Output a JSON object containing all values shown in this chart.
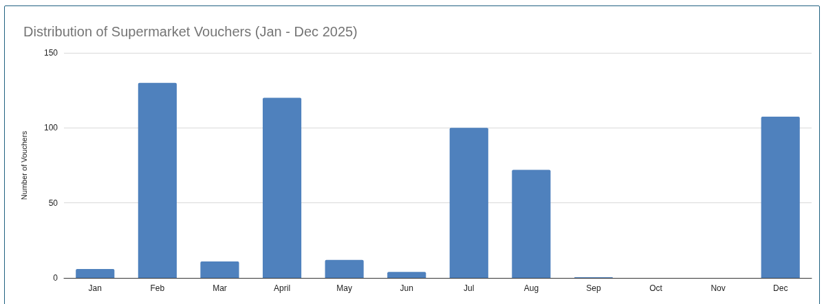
{
  "chart_data": {
    "type": "bar",
    "title": "Distribution of Supermarket Vouchers (Jan - Dec 2025)",
    "ylabel": "Number of Vouchers",
    "categories": [
      "Jan",
      "Feb",
      "Mar",
      "April",
      "May",
      "Jun",
      "Jul",
      "Aug",
      "Sep",
      "Oct",
      "Nov",
      "Dec"
    ],
    "values": [
      6,
      130,
      11,
      120,
      12,
      4,
      100,
      72,
      0.5,
      0,
      0,
      107.5
    ],
    "color": "#4f81bd",
    "ylim": [
      0,
      150
    ],
    "yticks": [
      0,
      50,
      100,
      150
    ],
    "grid": "y"
  }
}
